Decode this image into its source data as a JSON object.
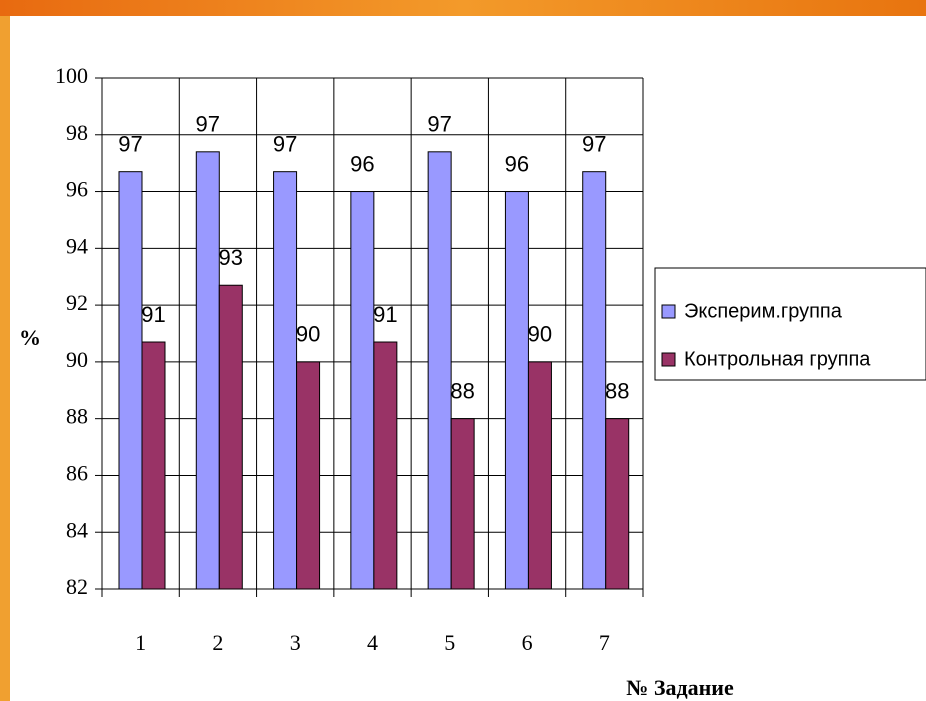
{
  "chart_data": {
    "type": "bar",
    "x_label": "№ Задание",
    "y_label": "%",
    "categories": [
      "1",
      "2",
      "3",
      "4",
      "5",
      "6",
      "7"
    ],
    "series": [
      {
        "name": "Эксперим.группа",
        "color": "#9999ff",
        "values": [
          96.7,
          97.4,
          96.7,
          96.0,
          97.4,
          96.0,
          96.7
        ],
        "value_labels": [
          "97",
          "97",
          "97",
          "96",
          "97",
          "96",
          "97"
        ]
      },
      {
        "name": "Контрольная группа",
        "color": "#993366",
        "values": [
          90.7,
          92.7,
          90.0,
          90.7,
          88.0,
          90.0,
          88.0
        ],
        "value_labels": [
          "91",
          "93",
          "90",
          "91",
          "88",
          "90",
          "88"
        ]
      }
    ],
    "ylim": [
      82,
      100
    ],
    "yticks": [
      82,
      84,
      86,
      88,
      90,
      92,
      94,
      96,
      98,
      100
    ],
    "grid": true,
    "legend": "right"
  }
}
